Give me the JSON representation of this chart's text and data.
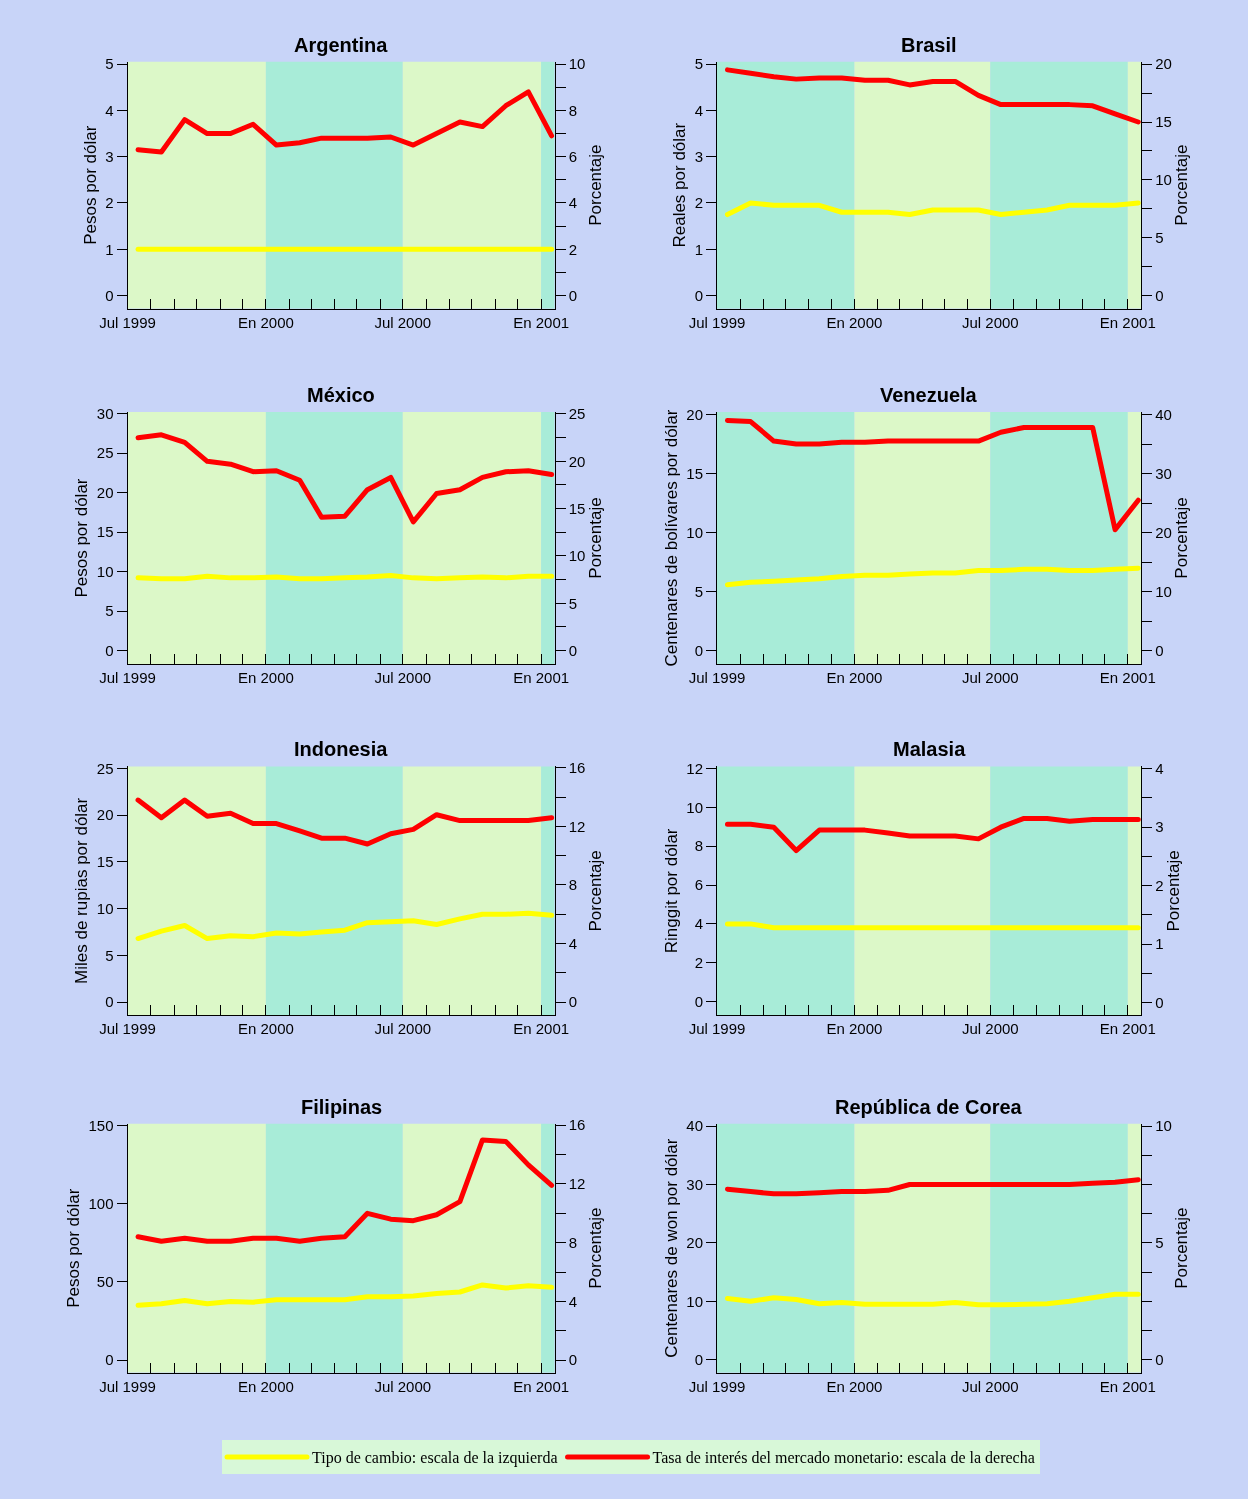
{
  "chart_data": [
    {
      "type": "line",
      "title": "Argentina",
      "ylabel": "Pesos por dólar",
      "y2label": "Porcentaje",
      "legend": "bottom",
      "grid": false,
      "x": [
        "1999-07-15",
        "1999-08-15",
        "1999-09-15",
        "1999-10-15",
        "1999-11-15",
        "1999-12-15",
        "2000-01-15",
        "2000-02-15",
        "2000-03-15",
        "2000-04-15",
        "2000-05-15",
        "2000-06-15",
        "2000-07-15",
        "2000-08-15",
        "2000-09-15",
        "2000-10-15",
        "2000-11-15",
        "2000-12-15",
        "2001-01-15"
      ],
      "xlim": [
        "1999-07-01",
        "2001-01-19"
      ],
      "xticks": [
        {
          "value": "1999-07-01",
          "label": "Jul 1999"
        },
        {
          "value": "1999-08-01",
          "label": null
        },
        {
          "value": "1999-09-01",
          "label": null
        },
        {
          "value": "1999-10-01",
          "label": null
        },
        {
          "value": "1999-11-01",
          "label": null
        },
        {
          "value": "1999-12-01",
          "label": null
        },
        {
          "value": "2000-01-01",
          "label": "En 2000"
        },
        {
          "value": "2000-02-01",
          "label": null
        },
        {
          "value": "2000-03-01",
          "label": null
        },
        {
          "value": "2000-04-01",
          "label": null
        },
        {
          "value": "2000-05-01",
          "label": null
        },
        {
          "value": "2000-06-01",
          "label": null
        },
        {
          "value": "2000-07-01",
          "label": "Jul 2000"
        },
        {
          "value": "2000-08-01",
          "label": null
        },
        {
          "value": "2000-09-01",
          "label": null
        },
        {
          "value": "2000-10-01",
          "label": null
        },
        {
          "value": "2000-11-01",
          "label": null
        },
        {
          "value": "2000-12-01",
          "label": null
        },
        {
          "value": "2001-01-01",
          "label": "En 2001"
        }
      ],
      "ylim": [
        -0.28,
        5.05
      ],
      "yticks": [
        0,
        1,
        2,
        3,
        4,
        5
      ],
      "y2lim": [
        -0.56,
        10.1
      ],
      "y2ticks": [
        0,
        {
          "value": 1,
          "label": null
        },
        2,
        {
          "value": 3,
          "label": null
        },
        4,
        {
          "value": 5,
          "label": null
        },
        6,
        {
          "value": 7,
          "label": null
        },
        8,
        {
          "value": 9,
          "label": null
        },
        10
      ],
      "bands": [
        {
          "axis": "x",
          "from": "1999-07-01",
          "to": "2000-01-01",
          "color": "#dcf8c8"
        },
        {
          "axis": "x",
          "from": "2000-01-01",
          "to": "2000-07-01",
          "color": "#a8ecd8"
        },
        {
          "axis": "x",
          "from": "2000-07-01",
          "to": "2001-01-01",
          "color": "#dcf8c8"
        },
        {
          "axis": "x",
          "from": "2001-01-01",
          "to": "2001-01-19",
          "color": "#a8ecd8"
        }
      ],
      "series": [
        {
          "name": "Tipo de cambio: escala de la izquierda",
          "color": "#ffff00",
          "axis": "y",
          "values": [
            1,
            1,
            1,
            1,
            1,
            1,
            1,
            1,
            1,
            1,
            1,
            1,
            1,
            1,
            1,
            1,
            1,
            1,
            1
          ]
        },
        {
          "name": "Tasa de interés del mercado monetario: escala de la derecha",
          "color": "#ff0000",
          "axis": "y2",
          "values": [
            6.3,
            6.2,
            7.6,
            7.0,
            7.0,
            7.4,
            6.5,
            6.6,
            6.8,
            6.8,
            6.8,
            6.85,
            6.5,
            7.0,
            7.5,
            7.3,
            8.2,
            8.8,
            6.9
          ]
        }
      ]
    },
    {
      "type": "line",
      "title": "Brasil",
      "ylabel": "Reales por dólar",
      "y2label": "Porcentaje",
      "grid": false,
      "x": [
        "1999-07-15",
        "1999-08-15",
        "1999-09-15",
        "1999-10-15",
        "1999-11-15",
        "1999-12-15",
        "2000-01-15",
        "2000-02-15",
        "2000-03-15",
        "2000-04-15",
        "2000-05-15",
        "2000-06-15",
        "2000-07-15",
        "2000-08-15",
        "2000-09-15",
        "2000-10-15",
        "2000-11-15",
        "2000-12-15",
        "2001-01-15"
      ],
      "xlim": [
        "1999-07-01",
        "2001-01-19"
      ],
      "xticks": [
        {
          "value": "1999-07-01",
          "label": "Jul 1999"
        },
        {
          "value": "1999-08-01",
          "label": null
        },
        {
          "value": "1999-09-01",
          "label": null
        },
        {
          "value": "1999-10-01",
          "label": null
        },
        {
          "value": "1999-11-01",
          "label": null
        },
        {
          "value": "1999-12-01",
          "label": null
        },
        {
          "value": "2000-01-01",
          "label": "En 2000"
        },
        {
          "value": "2000-02-01",
          "label": null
        },
        {
          "value": "2000-03-01",
          "label": null
        },
        {
          "value": "2000-04-01",
          "label": null
        },
        {
          "value": "2000-05-01",
          "label": null
        },
        {
          "value": "2000-06-01",
          "label": null
        },
        {
          "value": "2000-07-01",
          "label": "Jul 2000"
        },
        {
          "value": "2000-08-01",
          "label": null
        },
        {
          "value": "2000-09-01",
          "label": null
        },
        {
          "value": "2000-10-01",
          "label": null
        },
        {
          "value": "2000-11-01",
          "label": null
        },
        {
          "value": "2000-12-01",
          "label": null
        },
        {
          "value": "2001-01-01",
          "label": "En 2001"
        }
      ],
      "ylim": [
        -0.28,
        5.05
      ],
      "yticks": [
        0,
        1,
        2,
        3,
        4,
        5
      ],
      "y2lim": [
        -1.1,
        20.2
      ],
      "y2ticks": [
        0,
        {
          "value": 2.5,
          "label": null
        },
        5,
        {
          "value": 7.5,
          "label": null
        },
        10,
        {
          "value": 12.5,
          "label": null
        },
        15,
        {
          "value": 17.5,
          "label": null
        },
        20
      ],
      "bands": [
        {
          "axis": "x",
          "from": "1999-07-01",
          "to": "2000-01-01",
          "color": "#a8ecd8"
        },
        {
          "axis": "x",
          "from": "2000-01-01",
          "to": "2000-07-01",
          "color": "#dcf8c8"
        },
        {
          "axis": "x",
          "from": "2000-07-01",
          "to": "2001-01-01",
          "color": "#a8ecd8"
        },
        {
          "axis": "x",
          "from": "2001-01-01",
          "to": "2001-01-19",
          "color": "#dcf8c8"
        }
      ],
      "series": [
        {
          "color": "#ffff00",
          "axis": "y",
          "values": [
            1.75,
            2.0,
            1.95,
            1.95,
            1.95,
            1.8,
            1.8,
            1.8,
            1.75,
            1.85,
            1.85,
            1.85,
            1.75,
            1.8,
            1.85,
            1.95,
            1.95,
            1.95,
            2.0
          ]
        },
        {
          "color": "#ff0000",
          "axis": "y2",
          "values": [
            19.5,
            19.2,
            18.9,
            18.7,
            18.8,
            18.8,
            18.6,
            18.6,
            18.2,
            18.5,
            18.5,
            17.3,
            16.5,
            16.5,
            16.5,
            16.5,
            16.4,
            15.7,
            15.0
          ]
        }
      ]
    },
    {
      "type": "line",
      "title": "México",
      "ylabel": "Pesos por dólar",
      "y2label": "Porcentaje",
      "grid": false,
      "x": [
        "1999-07-15",
        "1999-08-15",
        "1999-09-15",
        "1999-10-15",
        "1999-11-15",
        "1999-12-15",
        "2000-01-15",
        "2000-02-15",
        "2000-03-15",
        "2000-04-15",
        "2000-05-15",
        "2000-06-15",
        "2000-07-15",
        "2000-08-15",
        "2000-09-15",
        "2000-10-15",
        "2000-11-15",
        "2000-12-15",
        "2001-01-15"
      ],
      "xlim": [
        "1999-07-01",
        "2001-01-19"
      ],
      "xticks": [
        {
          "value": "1999-07-01",
          "label": "Jul 1999"
        },
        {
          "value": "1999-08-01",
          "label": null
        },
        {
          "value": "1999-09-01",
          "label": null
        },
        {
          "value": "1999-10-01",
          "label": null
        },
        {
          "value": "1999-11-01",
          "label": null
        },
        {
          "value": "1999-12-01",
          "label": null
        },
        {
          "value": "2000-01-01",
          "label": "En 2000"
        },
        {
          "value": "2000-02-01",
          "label": null
        },
        {
          "value": "2000-03-01",
          "label": null
        },
        {
          "value": "2000-04-01",
          "label": null
        },
        {
          "value": "2000-05-01",
          "label": null
        },
        {
          "value": "2000-06-01",
          "label": null
        },
        {
          "value": "2000-07-01",
          "label": "Jul 2000"
        },
        {
          "value": "2000-08-01",
          "label": null
        },
        {
          "value": "2000-09-01",
          "label": null
        },
        {
          "value": "2000-10-01",
          "label": null
        },
        {
          "value": "2000-11-01",
          "label": null
        },
        {
          "value": "2000-12-01",
          "label": null
        },
        {
          "value": "2001-01-01",
          "label": "En 2001"
        }
      ],
      "ylim": [
        -1.7,
        30.2
      ],
      "yticks": [
        0,
        5,
        10,
        15,
        20,
        25,
        30
      ],
      "y2lim": [
        -1.4,
        25.2
      ],
      "y2ticks": [
        0,
        {
          "value": 2.5,
          "label": null
        },
        5,
        {
          "value": 7.5,
          "label": null
        },
        10,
        {
          "value": 12.5,
          "label": null
        },
        15,
        {
          "value": 17.5,
          "label": null
        },
        20,
        {
          "value": 22.5,
          "label": null
        },
        25
      ],
      "bands": [
        {
          "axis": "x",
          "from": "1999-07-01",
          "to": "2000-01-01",
          "color": "#dcf8c8"
        },
        {
          "axis": "x",
          "from": "2000-01-01",
          "to": "2000-07-01",
          "color": "#a8ecd8"
        },
        {
          "axis": "x",
          "from": "2000-07-01",
          "to": "2001-01-01",
          "color": "#dcf8c8"
        },
        {
          "axis": "x",
          "from": "2001-01-01",
          "to": "2001-01-19",
          "color": "#a8ecd8"
        }
      ],
      "series": [
        {
          "color": "#ffff00",
          "axis": "y",
          "values": [
            9.2,
            9.1,
            9.1,
            9.4,
            9.2,
            9.2,
            9.3,
            9.1,
            9.1,
            9.2,
            9.3,
            9.5,
            9.2,
            9.1,
            9.2,
            9.3,
            9.2,
            9.4,
            9.4
          ]
        },
        {
          "color": "#ff0000",
          "axis": "y2",
          "values": [
            22.5,
            22.8,
            22.0,
            20.0,
            19.7,
            18.9,
            19.0,
            18.0,
            14.1,
            14.2,
            17.0,
            18.3,
            13.6,
            16.6,
            17.0,
            18.3,
            18.9,
            19.0,
            18.6
          ]
        }
      ]
    },
    {
      "type": "line",
      "title": "Venezuela",
      "ylabel": "Centenares de bolívares por dólar",
      "y2label": "Porcentaje",
      "grid": false,
      "x": [
        "1999-07-15",
        "1999-08-15",
        "1999-09-15",
        "1999-10-15",
        "1999-11-15",
        "1999-12-15",
        "2000-01-15",
        "2000-02-15",
        "2000-03-15",
        "2000-04-15",
        "2000-05-15",
        "2000-06-15",
        "2000-07-15",
        "2000-08-15",
        "2000-09-15",
        "2000-10-15",
        "2000-11-15",
        "2000-12-15",
        "2001-01-15"
      ],
      "xlim": [
        "1999-07-01",
        "2001-01-19"
      ],
      "xticks": [
        {
          "value": "1999-07-01",
          "label": "Jul 1999"
        },
        {
          "value": "1999-08-01",
          "label": null
        },
        {
          "value": "1999-09-01",
          "label": null
        },
        {
          "value": "1999-10-01",
          "label": null
        },
        {
          "value": "1999-11-01",
          "label": null
        },
        {
          "value": "1999-12-01",
          "label": null
        },
        {
          "value": "2000-01-01",
          "label": "En 2000"
        },
        {
          "value": "2000-02-01",
          "label": null
        },
        {
          "value": "2000-03-01",
          "label": null
        },
        {
          "value": "2000-04-01",
          "label": null
        },
        {
          "value": "2000-05-01",
          "label": null
        },
        {
          "value": "2000-06-01",
          "label": null
        },
        {
          "value": "2000-07-01",
          "label": "Jul 2000"
        },
        {
          "value": "2000-08-01",
          "label": null
        },
        {
          "value": "2000-09-01",
          "label": null
        },
        {
          "value": "2000-10-01",
          "label": null
        },
        {
          "value": "2000-11-01",
          "label": null
        },
        {
          "value": "2000-12-01",
          "label": null
        },
        {
          "value": "2001-01-01",
          "label": "En 2001"
        }
      ],
      "ylim": [
        -1.1,
        20.2
      ],
      "yticks": [
        0,
        5,
        10,
        15,
        20
      ],
      "y2lim": [
        -2.2,
        40.4
      ],
      "y2ticks": [
        0,
        {
          "value": 5,
          "label": null
        },
        10,
        {
          "value": 15,
          "label": null
        },
        20,
        {
          "value": 25,
          "label": null
        },
        30,
        {
          "value": 35,
          "label": null
        },
        40
      ],
      "bands": [
        {
          "axis": "x",
          "from": "1999-07-01",
          "to": "2000-01-01",
          "color": "#a8ecd8"
        },
        {
          "axis": "x",
          "from": "2000-01-01",
          "to": "2000-07-01",
          "color": "#dcf8c8"
        },
        {
          "axis": "x",
          "from": "2000-07-01",
          "to": "2001-01-01",
          "color": "#a8ecd8"
        },
        {
          "axis": "x",
          "from": "2001-01-01",
          "to": "2001-01-19",
          "color": "#dcf8c8"
        }
      ],
      "series": [
        {
          "color": "#ffff00",
          "axis": "y",
          "values": [
            5.6,
            5.8,
            5.9,
            6.0,
            6.1,
            6.3,
            6.4,
            6.4,
            6.5,
            6.6,
            6.6,
            6.8,
            6.8,
            6.9,
            6.9,
            6.8,
            6.8,
            6.9,
            7.0
          ]
        },
        {
          "color": "#ff0000",
          "axis": "y2",
          "values": [
            39.0,
            38.8,
            35.5,
            35.0,
            35.0,
            35.3,
            35.3,
            35.5,
            35.5,
            35.5,
            35.5,
            35.5,
            37.0,
            37.8,
            37.8,
            37.8,
            37.8,
            20.5,
            25.5
          ]
        }
      ]
    },
    {
      "type": "line",
      "title": "Indonesia",
      "ylabel": "Miles de rupias por dólar",
      "y2label": "Porcentaje",
      "grid": false,
      "x": [
        "1999-07-15",
        "1999-08-15",
        "1999-09-15",
        "1999-10-15",
        "1999-11-15",
        "1999-12-15",
        "2000-01-15",
        "2000-02-15",
        "2000-03-15",
        "2000-04-15",
        "2000-05-15",
        "2000-06-15",
        "2000-07-15",
        "2000-08-15",
        "2000-09-15",
        "2000-10-15",
        "2000-11-15",
        "2000-12-15",
        "2001-01-15"
      ],
      "xlim": [
        "1999-07-01",
        "2001-01-19"
      ],
      "xticks": [
        {
          "value": "1999-07-01",
          "label": "Jul 1999"
        },
        {
          "value": "1999-08-01",
          "label": null
        },
        {
          "value": "1999-09-01",
          "label": null
        },
        {
          "value": "1999-10-01",
          "label": null
        },
        {
          "value": "1999-11-01",
          "label": null
        },
        {
          "value": "1999-12-01",
          "label": null
        },
        {
          "value": "2000-01-01",
          "label": "En 2000"
        },
        {
          "value": "2000-02-01",
          "label": null
        },
        {
          "value": "2000-03-01",
          "label": null
        },
        {
          "value": "2000-04-01",
          "label": null
        },
        {
          "value": "2000-05-01",
          "label": null
        },
        {
          "value": "2000-06-01",
          "label": null
        },
        {
          "value": "2000-07-01",
          "label": "Jul 2000"
        },
        {
          "value": "2000-08-01",
          "label": null
        },
        {
          "value": "2000-09-01",
          "label": null
        },
        {
          "value": "2000-10-01",
          "label": null
        },
        {
          "value": "2000-11-01",
          "label": null
        },
        {
          "value": "2000-12-01",
          "label": null
        },
        {
          "value": "2001-01-01",
          "label": "En 2001"
        }
      ],
      "ylim": [
        -1.4,
        25.2
      ],
      "yticks": [
        0,
        5,
        10,
        15,
        20,
        25
      ],
      "y2lim": [
        -0.9,
        16.1
      ],
      "y2ticks": [
        0,
        {
          "value": 2,
          "label": null
        },
        4,
        {
          "value": 6,
          "label": null
        },
        8,
        {
          "value": 10,
          "label": null
        },
        12,
        {
          "value": 14,
          "label": null
        },
        16
      ],
      "bands": [
        {
          "axis": "x",
          "from": "1999-07-01",
          "to": "2000-01-01",
          "color": "#dcf8c8"
        },
        {
          "axis": "x",
          "from": "2000-01-01",
          "to": "2000-07-01",
          "color": "#a8ecd8"
        },
        {
          "axis": "x",
          "from": "2000-07-01",
          "to": "2001-01-01",
          "color": "#dcf8c8"
        },
        {
          "axis": "x",
          "from": "2001-01-01",
          "to": "2001-01-19",
          "color": "#a8ecd8"
        }
      ],
      "series": [
        {
          "color": "#ffff00",
          "axis": "y",
          "values": [
            6.8,
            7.6,
            8.2,
            6.8,
            7.1,
            7.0,
            7.4,
            7.3,
            7.5,
            7.7,
            8.5,
            8.6,
            8.7,
            8.3,
            8.9,
            9.4,
            9.4,
            9.5,
            9.3
          ]
        },
        {
          "color": "#ff0000",
          "axis": "y2",
          "values": [
            13.8,
            12.6,
            13.8,
            12.7,
            12.9,
            12.2,
            12.2,
            11.7,
            11.2,
            11.2,
            10.8,
            11.5,
            11.8,
            12.8,
            12.4,
            12.4,
            12.4,
            12.4,
            12.6
          ]
        }
      ]
    },
    {
      "type": "line",
      "title": "Malasia",
      "ylabel": "Ringgit por dólar",
      "y2label": "Porcentaje",
      "grid": false,
      "x": [
        "1999-07-15",
        "1999-08-15",
        "1999-09-15",
        "1999-10-15",
        "1999-11-15",
        "1999-12-15",
        "2000-01-15",
        "2000-02-15",
        "2000-03-15",
        "2000-04-15",
        "2000-05-15",
        "2000-06-15",
        "2000-07-15",
        "2000-08-15",
        "2000-09-15",
        "2000-10-15",
        "2000-11-15",
        "2000-12-15",
        "2001-01-15"
      ],
      "xlim": [
        "1999-07-01",
        "2001-01-19"
      ],
      "xticks": [
        {
          "value": "1999-07-01",
          "label": "Jul 1999"
        },
        {
          "value": "1999-08-01",
          "label": null
        },
        {
          "value": "1999-09-01",
          "label": null
        },
        {
          "value": "1999-10-01",
          "label": null
        },
        {
          "value": "1999-11-01",
          "label": null
        },
        {
          "value": "1999-12-01",
          "label": null
        },
        {
          "value": "2000-01-01",
          "label": "En 2000"
        },
        {
          "value": "2000-02-01",
          "label": null
        },
        {
          "value": "2000-03-01",
          "label": null
        },
        {
          "value": "2000-04-01",
          "label": null
        },
        {
          "value": "2000-05-01",
          "label": null
        },
        {
          "value": "2000-06-01",
          "label": null
        },
        {
          "value": "2000-07-01",
          "label": "Jul 2000"
        },
        {
          "value": "2000-08-01",
          "label": null
        },
        {
          "value": "2000-09-01",
          "label": null
        },
        {
          "value": "2000-10-01",
          "label": null
        },
        {
          "value": "2000-11-01",
          "label": null
        },
        {
          "value": "2000-12-01",
          "label": null
        },
        {
          "value": "2001-01-01",
          "label": "En 2001"
        }
      ],
      "ylim": [
        -0.7,
        12.1
      ],
      "yticks": [
        0,
        2,
        4,
        6,
        8,
        10,
        12
      ],
      "y2lim": [
        -0.22,
        4.04
      ],
      "y2ticks": [
        0,
        {
          "value": 0.5,
          "label": null
        },
        1,
        {
          "value": 1.5,
          "label": null
        },
        2,
        {
          "value": 2.5,
          "label": null
        },
        3,
        {
          "value": 3.5,
          "label": null
        },
        4
      ],
      "bands": [
        {
          "axis": "x",
          "from": "1999-07-01",
          "to": "2000-01-01",
          "color": "#a8ecd8"
        },
        {
          "axis": "x",
          "from": "2000-01-01",
          "to": "2000-07-01",
          "color": "#dcf8c8"
        },
        {
          "axis": "x",
          "from": "2000-07-01",
          "to": "2001-01-01",
          "color": "#a8ecd8"
        },
        {
          "axis": "x",
          "from": "2001-01-01",
          "to": "2001-01-19",
          "color": "#dcf8c8"
        }
      ],
      "series": [
        {
          "color": "#ffff00",
          "axis": "y",
          "values": [
            4.0,
            4.0,
            3.8,
            3.8,
            3.8,
            3.8,
            3.8,
            3.8,
            3.8,
            3.8,
            3.8,
            3.8,
            3.8,
            3.8,
            3.8,
            3.8,
            3.8,
            3.8,
            3.8
          ]
        },
        {
          "color": "#ff0000",
          "axis": "y2",
          "values": [
            3.05,
            3.05,
            3.0,
            2.6,
            2.95,
            2.95,
            2.95,
            2.9,
            2.85,
            2.85,
            2.85,
            2.8,
            3.0,
            3.15,
            3.15,
            3.1,
            3.13,
            3.13,
            3.13
          ]
        }
      ]
    },
    {
      "type": "line",
      "title": "Filipinas",
      "ylabel": "Pesos por dólar",
      "y2label": "Porcentaje",
      "grid": false,
      "x": [
        "1999-07-15",
        "1999-08-15",
        "1999-09-15",
        "1999-10-15",
        "1999-11-15",
        "1999-12-15",
        "2000-01-15",
        "2000-02-15",
        "2000-03-15",
        "2000-04-15",
        "2000-05-15",
        "2000-06-15",
        "2000-07-15",
        "2000-08-15",
        "2000-09-15",
        "2000-10-15",
        "2000-11-15",
        "2000-12-15",
        "2001-01-15"
      ],
      "xlim": [
        "1999-07-01",
        "2001-01-19"
      ],
      "xticks": [
        {
          "value": "1999-07-01",
          "label": "Jul 1999"
        },
        {
          "value": "1999-08-01",
          "label": null
        },
        {
          "value": "1999-09-01",
          "label": null
        },
        {
          "value": "1999-10-01",
          "label": null
        },
        {
          "value": "1999-11-01",
          "label": null
        },
        {
          "value": "1999-12-01",
          "label": null
        },
        {
          "value": "2000-01-01",
          "label": "En 2000"
        },
        {
          "value": "2000-02-01",
          "label": null
        },
        {
          "value": "2000-03-01",
          "label": null
        },
        {
          "value": "2000-04-01",
          "label": null
        },
        {
          "value": "2000-05-01",
          "label": null
        },
        {
          "value": "2000-06-01",
          "label": null
        },
        {
          "value": "2000-07-01",
          "label": "Jul 2000"
        },
        {
          "value": "2000-08-01",
          "label": null
        },
        {
          "value": "2000-09-01",
          "label": null
        },
        {
          "value": "2000-10-01",
          "label": null
        },
        {
          "value": "2000-11-01",
          "label": null
        },
        {
          "value": "2000-12-01",
          "label": null
        },
        {
          "value": "2001-01-01",
          "label": "En 2001"
        }
      ],
      "ylim": [
        -8,
        151
      ],
      "yticks": [
        0,
        50,
        100,
        150
      ],
      "y2lim": [
        -0.85,
        16.1
      ],
      "y2ticks": [
        0,
        {
          "value": 2,
          "label": null
        },
        4,
        {
          "value": 6,
          "label": null
        },
        8,
        {
          "value": 10,
          "label": null
        },
        12,
        {
          "value": 14,
          "label": null
        },
        16
      ],
      "bands": [
        {
          "axis": "x",
          "from": "1999-07-01",
          "to": "2000-01-01",
          "color": "#dcf8c8"
        },
        {
          "axis": "x",
          "from": "2000-01-01",
          "to": "2000-07-01",
          "color": "#a8ecd8"
        },
        {
          "axis": "x",
          "from": "2000-07-01",
          "to": "2001-01-01",
          "color": "#dcf8c8"
        },
        {
          "axis": "x",
          "from": "2001-01-01",
          "to": "2001-01-19",
          "color": "#a8ecd8"
        }
      ],
      "series": [
        {
          "color": "#ffff00",
          "axis": "y",
          "values": [
            35,
            36,
            38,
            36,
            37.5,
            37,
            38.5,
            38.5,
            38.5,
            38.5,
            40.5,
            40.5,
            41,
            42.5,
            43.5,
            48,
            46,
            47.5,
            46.5
          ]
        },
        {
          "color": "#ff0000",
          "axis": "y2",
          "values": [
            8.4,
            8.1,
            8.3,
            8.1,
            8.1,
            8.3,
            8.3,
            8.1,
            8.3,
            8.4,
            10.0,
            9.6,
            9.5,
            9.9,
            10.8,
            15.0,
            14.9,
            13.3,
            11.9
          ]
        }
      ]
    },
    {
      "type": "line",
      "title": "República de Corea",
      "ylabel": "Centenares de won por dólar",
      "y2label": "Porcentaje",
      "grid": false,
      "x": [
        "1999-07-15",
        "1999-08-15",
        "1999-09-15",
        "1999-10-15",
        "1999-11-15",
        "1999-12-15",
        "2000-01-15",
        "2000-02-15",
        "2000-03-15",
        "2000-04-15",
        "2000-05-15",
        "2000-06-15",
        "2000-07-15",
        "2000-08-15",
        "2000-09-15",
        "2000-10-15",
        "2000-11-15",
        "2000-12-15",
        "2001-01-15"
      ],
      "xlim": [
        "1999-07-01",
        "2001-01-19"
      ],
      "xticks": [
        {
          "value": "1999-07-01",
          "label": "Jul 1999"
        },
        {
          "value": "1999-08-01",
          "label": null
        },
        {
          "value": "1999-09-01",
          "label": null
        },
        {
          "value": "1999-10-01",
          "label": null
        },
        {
          "value": "1999-11-01",
          "label": null
        },
        {
          "value": "1999-12-01",
          "label": null
        },
        {
          "value": "2000-01-01",
          "label": "En 2000"
        },
        {
          "value": "2000-02-01",
          "label": null
        },
        {
          "value": "2000-03-01",
          "label": null
        },
        {
          "value": "2000-04-01",
          "label": null
        },
        {
          "value": "2000-05-01",
          "label": null
        },
        {
          "value": "2000-06-01",
          "label": null
        },
        {
          "value": "2000-07-01",
          "label": "Jul 2000"
        },
        {
          "value": "2000-08-01",
          "label": null
        },
        {
          "value": "2000-09-01",
          "label": null
        },
        {
          "value": "2000-10-01",
          "label": null
        },
        {
          "value": "2000-11-01",
          "label": null
        },
        {
          "value": "2000-12-01",
          "label": null
        },
        {
          "value": "2001-01-01",
          "label": "En 2001"
        }
      ],
      "ylim": [
        -2.2,
        40.4
      ],
      "yticks": [
        0,
        10,
        20,
        30,
        40
      ],
      "y2lim": [
        -0.55,
        10.1
      ],
      "y2ticks": [
        0,
        {
          "value": 1.25,
          "label": null
        },
        {
          "value": 2.5,
          "label": null
        },
        {
          "value": 3.75,
          "label": null
        },
        5,
        {
          "value": 6.25,
          "label": null
        },
        {
          "value": 7.5,
          "label": null
        },
        {
          "value": 8.75,
          "label": null
        },
        10
      ],
      "bands": [
        {
          "axis": "x",
          "from": "1999-07-01",
          "to": "2000-01-01",
          "color": "#a8ecd8"
        },
        {
          "axis": "x",
          "from": "2000-01-01",
          "to": "2000-07-01",
          "color": "#dcf8c8"
        },
        {
          "axis": "x",
          "from": "2000-07-01",
          "to": "2001-01-01",
          "color": "#a8ecd8"
        },
        {
          "axis": "x",
          "from": "2001-01-01",
          "to": "2001-01-19",
          "color": "#dcf8c8"
        }
      ],
      "series": [
        {
          "color": "#ffff00",
          "axis": "y",
          "values": [
            10.5,
            10.0,
            10.6,
            10.3,
            9.6,
            9.8,
            9.5,
            9.5,
            9.5,
            9.5,
            9.8,
            9.4,
            9.4,
            9.5,
            9.6,
            10.0,
            10.6,
            11.2,
            11.2
          ]
        },
        {
          "color": "#ff0000",
          "axis": "y2",
          "values": [
            7.3,
            7.2,
            7.1,
            7.1,
            7.15,
            7.2,
            7.2,
            7.25,
            7.5,
            7.5,
            7.5,
            7.5,
            7.5,
            7.5,
            7.5,
            7.5,
            7.55,
            7.6,
            7.7
          ]
        }
      ]
    }
  ]
}
